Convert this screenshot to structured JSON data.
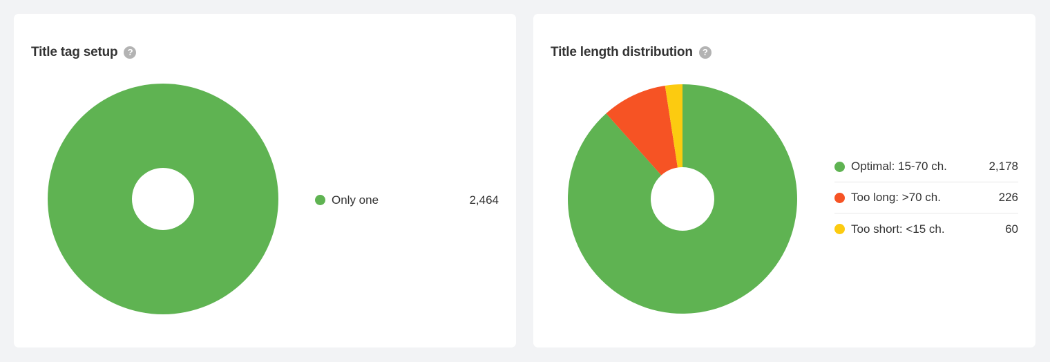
{
  "cards": {
    "left": {
      "title": "Title tag setup",
      "help_icon": "question-circle-icon",
      "help_glyph": "?",
      "legend": [
        {
          "label": "Only one",
          "value": "2,464",
          "color": "#5fb352"
        }
      ]
    },
    "right": {
      "title": "Title length distribution",
      "help_icon": "question-circle-icon",
      "help_glyph": "?",
      "legend": [
        {
          "label": "Optimal: 15-70 ch.",
          "value": "2,178",
          "color": "#5fb352"
        },
        {
          "label": "Too long: >70 ch.",
          "value": "226",
          "color": "#f65324"
        },
        {
          "label": "Too short: <15 ch.",
          "value": "60",
          "color": "#fccb10"
        }
      ]
    }
  },
  "chart_data": [
    {
      "type": "pie",
      "title": "Title tag setup",
      "categories": [
        "Only one"
      ],
      "values": [
        2464
      ],
      "colors": [
        "#5fb352"
      ],
      "donut": true,
      "legend_position": "right"
    },
    {
      "type": "pie",
      "title": "Title length distribution",
      "categories": [
        "Optimal: 15-70 ch.",
        "Too long: >70 ch.",
        "Too short: <15 ch."
      ],
      "values": [
        2178,
        226,
        60
      ],
      "colors": [
        "#5fb352",
        "#f65324",
        "#fccb10"
      ],
      "donut": true,
      "legend_position": "right"
    }
  ]
}
